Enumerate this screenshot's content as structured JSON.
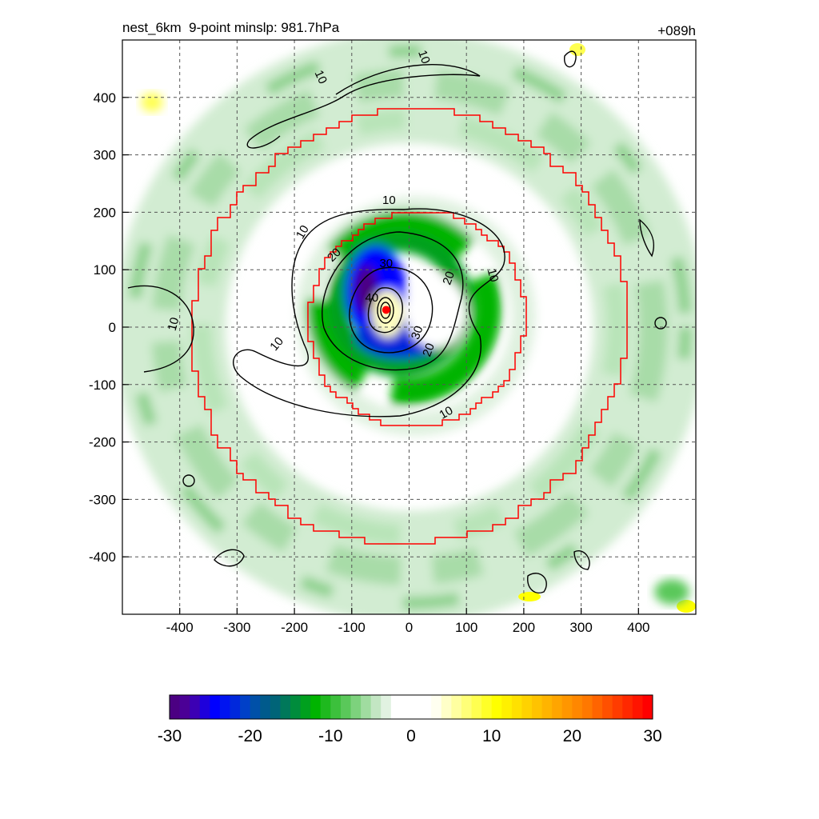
{
  "chart_data": {
    "type": "contour",
    "title": "nest_6km  9-point minslp: 981.7hPa",
    "title_right": "+089h",
    "grid": true,
    "x_range": [
      -500,
      500
    ],
    "y_range": [
      -500,
      500
    ],
    "x_ticks": [
      -400,
      -300,
      -200,
      -100,
      0,
      100,
      200,
      300,
      400
    ],
    "y_ticks": [
      400,
      300,
      200,
      100,
      0,
      -100,
      -200,
      -300,
      -400
    ],
    "storm_center": {
      "x": -40,
      "y": 30
    },
    "contour_labels": [
      {
        "text": "10",
        "x": 25,
        "y": 470,
        "rot": 70
      },
      {
        "text": "10",
        "x": -155,
        "y": 435,
        "rot": 65
      },
      {
        "text": "10",
        "x": -35,
        "y": 220,
        "rot": 0
      },
      {
        "text": "10",
        "x": -185,
        "y": 165,
        "rot": -60
      },
      {
        "text": "10",
        "x": 145,
        "y": 90,
        "rot": 75
      },
      {
        "text": "10",
        "x": -410,
        "y": 5,
        "rot": -75
      },
      {
        "text": "10",
        "x": -230,
        "y": -30,
        "rot": -50
      },
      {
        "text": "10",
        "x": 65,
        "y": -150,
        "rot": -30
      },
      {
        "text": "20",
        "x": -130,
        "y": 125,
        "rot": -45
      },
      {
        "text": "20",
        "x": 70,
        "y": 85,
        "rot": -70
      },
      {
        "text": "20",
        "x": 35,
        "y": -40,
        "rot": -70
      },
      {
        "text": "30",
        "x": -40,
        "y": 110,
        "rot": 0
      },
      {
        "text": "30",
        "x": 15,
        "y": -10,
        "rot": -70
      },
      {
        "text": "40",
        "x": -65,
        "y": 50,
        "rot": 0
      }
    ],
    "colorbar": {
      "ticks": [
        "-30",
        "-20",
        "-10",
        "0",
        "10",
        "20",
        "30"
      ],
      "min": -30,
      "max": 30,
      "colors": [
        "#4b0082",
        "#4b0096",
        "#3c00b4",
        "#1e00dc",
        "#0000ff",
        "#0014f0",
        "#0028dc",
        "#0040c8",
        "#0050a8",
        "#005a8c",
        "#006478",
        "#00785a",
        "#008c3c",
        "#00a01e",
        "#00b400",
        "#1eb91e",
        "#3cc03c",
        "#5ac85a",
        "#7dd27d",
        "#a0dca0",
        "#c3e6c3",
        "#e1f2e1",
        "#ffffff",
        "#ffffff",
        "#ffffff",
        "#ffffff",
        "#fffff0",
        "#ffffc8",
        "#ffffa0",
        "#ffff78",
        "#ffff50",
        "#ffff28",
        "#ffff00",
        "#fff000",
        "#ffe100",
        "#ffd200",
        "#ffc300",
        "#ffb400",
        "#ffa500",
        "#ff9600",
        "#ff8700",
        "#ff7800",
        "#ff6400",
        "#ff5000",
        "#ff3c00",
        "#ff2800",
        "#ff1400",
        "#ff0000"
      ]
    }
  }
}
